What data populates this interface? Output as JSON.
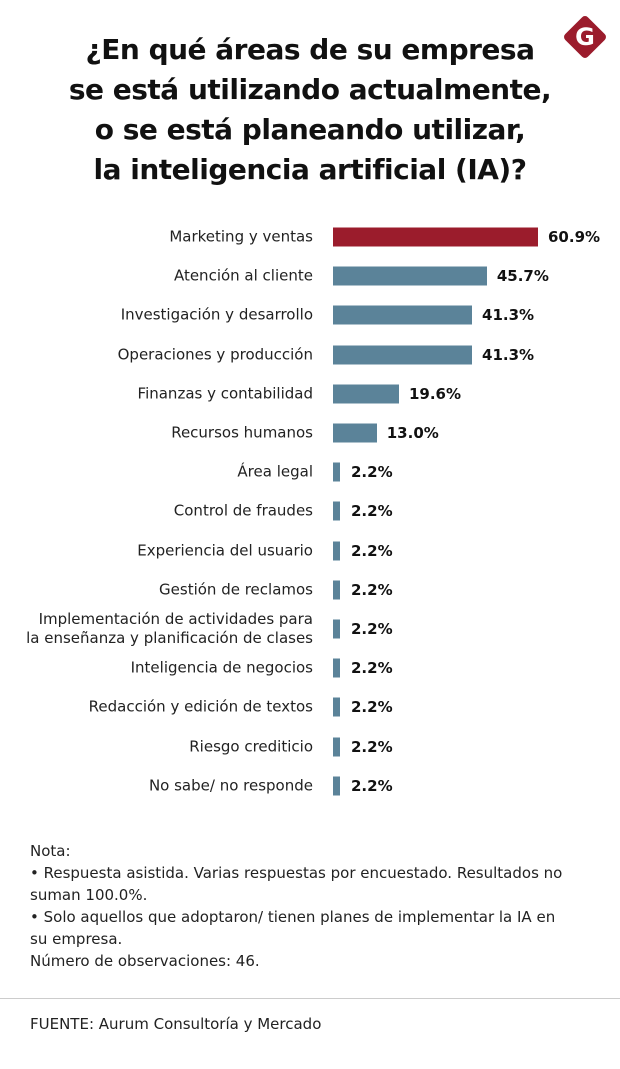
{
  "chart_data": {
    "type": "bar",
    "orientation": "horizontal",
    "title": "¿En qué áreas de su empresa\nse está utilizando actualmente,\no se está planeando utilizar,\nla inteligencia artificial (IA)?",
    "logo": "G",
    "categories": [
      "Marketing y ventas",
      "Atención al cliente",
      "Investigación y desarrollo",
      "Operaciones y producción",
      "Finanzas y contabilidad",
      "Recursos humanos",
      "Área legal",
      "Control de fraudes",
      "Experiencia del usuario",
      "Gestión de reclamos",
      "Implementación de actividades para\nla enseñanza y planificación de clases",
      "Inteligencia de negocios",
      "Redacción y edición de textos",
      "Riesgo crediticio",
      "No sabe/ no responde"
    ],
    "values": [
      60.9,
      45.7,
      41.3,
      41.3,
      19.6,
      13.0,
      2.2,
      2.2,
      2.2,
      2.2,
      2.2,
      2.2,
      2.2,
      2.2,
      2.2
    ],
    "value_labels": [
      "60.9%",
      "45.7%",
      "41.3%",
      "41.3%",
      "19.6%",
      "13.0%",
      "2.2%",
      "2.2%",
      "2.2%",
      "2.2%",
      "2.2%",
      "2.2%",
      "2.2%",
      "2.2%",
      "2.2%"
    ],
    "colors": [
      "#9b1c2c",
      "#5b8399",
      "#5b8399",
      "#5b8399",
      "#5b8399",
      "#5b8399",
      "#5b8399",
      "#5b8399",
      "#5b8399",
      "#5b8399",
      "#5b8399",
      "#5b8399",
      "#5b8399",
      "#5b8399",
      "#5b8399"
    ],
    "note": {
      "heading": "Nota:",
      "items": [
        "• Respuesta asistida. Varias respuestas por encuestado. Resultados no suman 100.0%.",
        "• Solo aquellos que adoptaron/ tienen planes de implementar la IA en su empresa."
      ],
      "observations": "Número de observaciones: 46."
    },
    "source": "FUENTE: Aurum Consultoría y Mercado"
  }
}
